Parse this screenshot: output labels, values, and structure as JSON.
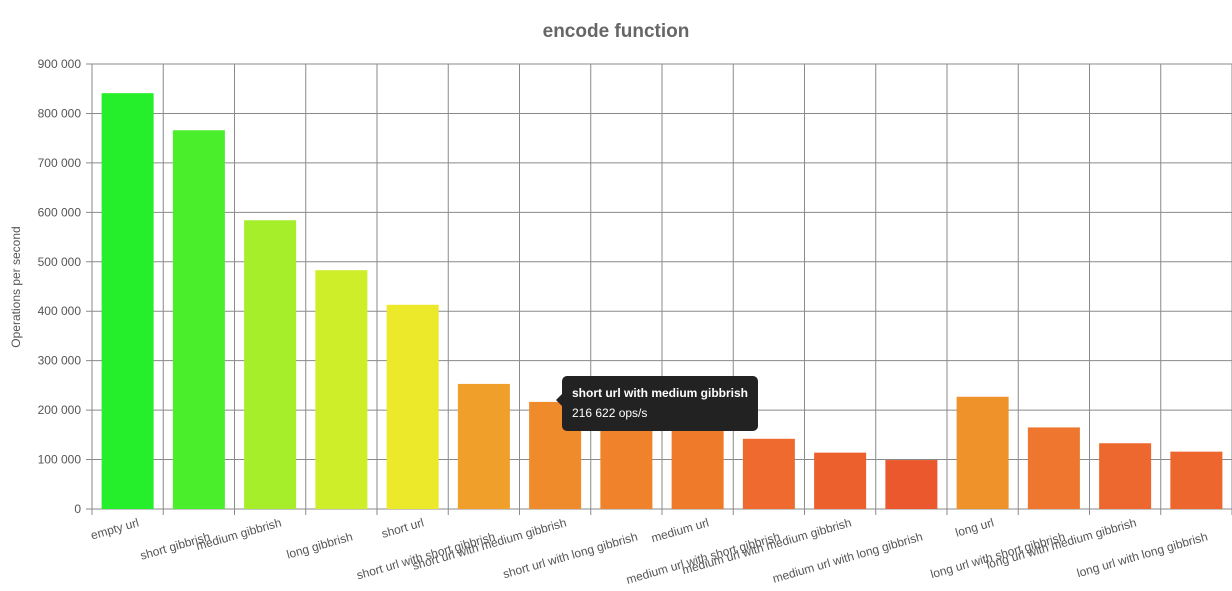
{
  "chart_data": {
    "type": "bar",
    "title": "encode function",
    "xlabel": "",
    "ylabel": "Operations per second",
    "ylim": [
      0,
      900000
    ],
    "yticks": [
      0,
      100000,
      200000,
      300000,
      400000,
      500000,
      600000,
      700000,
      800000,
      900000
    ],
    "ytick_labels": [
      "0",
      "100 000",
      "200 000",
      "300 000",
      "400 000",
      "500 000",
      "600 000",
      "700 000",
      "800 000",
      "900 000"
    ],
    "grid": true,
    "legend": "none",
    "categories": [
      "empty url",
      "short gibbrish",
      "medium gibbrish",
      "long gibbrish",
      "short url",
      "short url with short gibbrish",
      "short url with medium gibbrish",
      "short url with long gibbrish",
      "medium url",
      "medium url with short gibbrish",
      "medium url with medium gibbrish",
      "medium url with long gibbrish",
      "long url",
      "long url with short gibbrish",
      "long url with medium gibbrish",
      "long url with long gibbrish"
    ],
    "values": [
      841000,
      766000,
      584000,
      483000,
      413000,
      253000,
      216622,
      198000,
      178000,
      142000,
      114000,
      99000,
      227000,
      165000,
      133000,
      116000
    ],
    "colors": [
      "#25ee2a",
      "#4bee2a",
      "#a6ee2a",
      "#cfee2a",
      "#ece82a",
      "#ef9f2a",
      "#ef8b2a",
      "#ef822a",
      "#ef7a2a",
      "#ee6a2e",
      "#ec602e",
      "#ec582e",
      "#ef922a",
      "#ee762e",
      "#ed682e",
      "#ed662e"
    ],
    "tooltip": {
      "title": "short url with medium gibbrish",
      "value": "216 622 ops/s"
    }
  }
}
